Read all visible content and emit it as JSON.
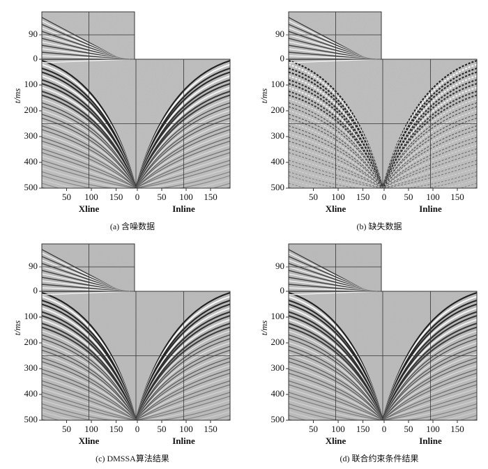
{
  "panels": [
    {
      "caption": "(a) 含噪数据",
      "ylabel": "t/ms",
      "ylim": [
        0,
        500
      ],
      "yticks": [
        0,
        100,
        200,
        300,
        400,
        500
      ],
      "inset_ylim": [
        0,
        175
      ],
      "inset_yticks": [
        90
      ],
      "xline_label": "Xline",
      "xline_lim": [
        0,
        190
      ],
      "xline_ticks": [
        50,
        100,
        150
      ],
      "inline_label": "Inline",
      "inline_lim": [
        0,
        190
      ],
      "inline_ticks": [
        0,
        50,
        100,
        150
      ]
    },
    {
      "caption": "(b) 缺失数据",
      "ylabel": "t/ms",
      "ylim": [
        0,
        500
      ],
      "yticks": [
        0,
        100,
        200,
        300,
        400,
        500
      ],
      "inset_ylim": [
        0,
        175
      ],
      "inset_yticks": [
        90
      ],
      "xline_label": "Xline",
      "xline_lim": [
        0,
        190
      ],
      "xline_ticks": [
        50,
        100,
        150
      ],
      "inline_label": "Inline",
      "inline_lim": [
        0,
        190
      ],
      "inline_ticks": [
        0,
        50,
        100,
        150
      ]
    },
    {
      "caption": "(c) DMSSA算法结果",
      "ylabel": "t/ms",
      "ylim": [
        0,
        500
      ],
      "yticks": [
        0,
        100,
        200,
        300,
        400,
        500
      ],
      "inset_ylim": [
        0,
        175
      ],
      "inset_yticks": [
        90
      ],
      "xline_label": "Xline",
      "xline_lim": [
        0,
        190
      ],
      "xline_ticks": [
        50,
        100,
        150
      ],
      "inline_label": "Inline",
      "inline_lim": [
        0,
        190
      ],
      "inline_ticks": [
        0,
        50,
        100,
        150
      ]
    },
    {
      "caption": "(d) 联合约束条件结果",
      "ylabel": "t/ms",
      "ylim": [
        0,
        500
      ],
      "yticks": [
        0,
        100,
        200,
        300,
        400,
        500
      ],
      "inset_ylim": [
        0,
        175
      ],
      "inset_yticks": [
        90
      ],
      "xline_label": "Xline",
      "xline_lim": [
        0,
        190
      ],
      "xline_ticks": [
        50,
        100,
        150
      ],
      "inline_label": "Inline",
      "inline_lim": [
        0,
        190
      ],
      "inline_ticks": [
        0,
        50,
        100,
        150
      ]
    }
  ]
}
